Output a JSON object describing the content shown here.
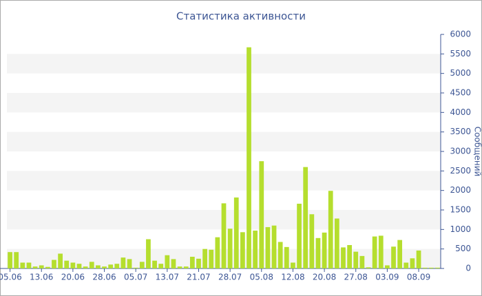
{
  "chart_data": {
    "type": "bar",
    "title": "Статистика активности",
    "y_label": "Сообщений",
    "categories": [
      "05.06",
      null,
      null,
      null,
      null,
      "13.06",
      null,
      null,
      null,
      null,
      "20.06",
      null,
      null,
      null,
      null,
      "28.06",
      null,
      null,
      null,
      null,
      "05.07",
      null,
      null,
      null,
      null,
      "13.07",
      null,
      null,
      null,
      null,
      "21.07",
      null,
      null,
      null,
      null,
      "28.07",
      null,
      null,
      null,
      null,
      "05.08",
      null,
      null,
      null,
      null,
      "12.08",
      null,
      null,
      null,
      null,
      "20.08",
      null,
      null,
      null,
      null,
      "27.08",
      null,
      null,
      null,
      null,
      "03.09",
      null,
      null,
      null,
      null,
      "08.09",
      null,
      null,
      null
    ],
    "values": [
      420,
      420,
      150,
      150,
      50,
      80,
      40,
      220,
      380,
      200,
      150,
      120,
      50,
      170,
      80,
      50,
      100,
      120,
      280,
      240,
      20,
      170,
      750,
      200,
      120,
      340,
      240,
      50,
      50,
      300,
      250,
      500,
      480,
      800,
      1670,
      1020,
      1820,
      930,
      5670,
      970,
      2750,
      1060,
      1100,
      680,
      550,
      150,
      1660,
      2600,
      1390,
      780,
      920,
      1990,
      1280,
      540,
      600,
      430,
      320,
      30,
      820,
      840,
      80,
      560,
      730,
      150,
      260,
      460,
      20,
      20,
      20
    ],
    "color": "#b5de2e",
    "ylim": [
      0,
      6000
    ],
    "yticks": [
      0,
      500,
      1000,
      1500,
      2000,
      2500,
      3000,
      3500,
      4000,
      4500,
      5000,
      5500,
      6000
    ],
    "stripes": true
  }
}
